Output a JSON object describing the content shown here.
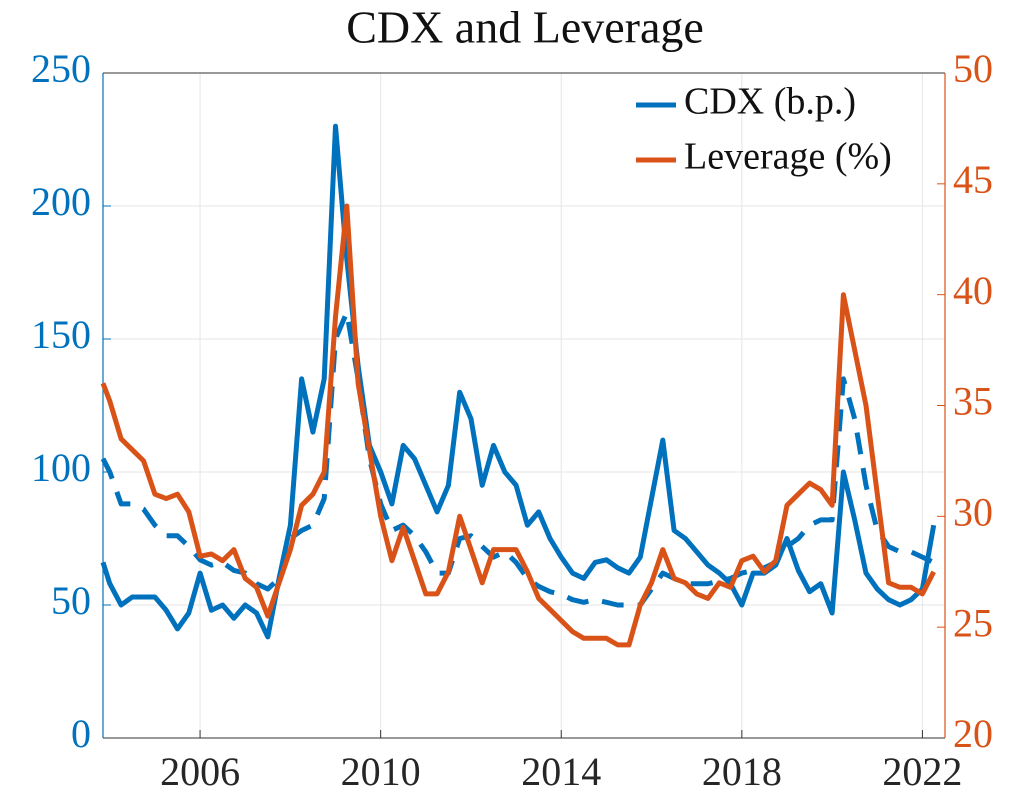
{
  "chart_data": {
    "type": "line",
    "title": "CDX and Leverage",
    "x": [
      2003.85,
      2004,
      2004.25,
      2004.5,
      2004.75,
      2005,
      2005.25,
      2005.5,
      2005.75,
      2006,
      2006.25,
      2006.5,
      2006.75,
      2007,
      2007.25,
      2007.5,
      2007.75,
      2008,
      2008.25,
      2008.5,
      2008.75,
      2009,
      2009.25,
      2009.5,
      2009.75,
      2010,
      2010.25,
      2010.5,
      2010.75,
      2011,
      2011.25,
      2011.5,
      2011.75,
      2012,
      2012.25,
      2012.5,
      2012.75,
      2013,
      2013.25,
      2013.5,
      2013.75,
      2014,
      2014.25,
      2014.5,
      2014.75,
      2015,
      2015.25,
      2015.5,
      2015.75,
      2016,
      2016.25,
      2016.5,
      2016.75,
      2017,
      2017.25,
      2017.5,
      2017.75,
      2018,
      2018.25,
      2018.5,
      2018.75,
      2019,
      2019.25,
      2019.5,
      2019.75,
      2020,
      2020.25,
      2020.5,
      2020.75,
      2021,
      2021.25,
      2021.5,
      2021.75,
      2022,
      2022.25
    ],
    "series": [
      {
        "name": "CDX (b.p.)",
        "color": "#0072bd",
        "style": "solid",
        "values": [
          66,
          58,
          50,
          53,
          53,
          53,
          48,
          41,
          47,
          62,
          48,
          50,
          45,
          50,
          47,
          38,
          60,
          80,
          135,
          115,
          135,
          230,
          180,
          140,
          110,
          100,
          88,
          110,
          105,
          95,
          85,
          95,
          130,
          120,
          95,
          110,
          100,
          95,
          80,
          85,
          75,
          68,
          62,
          60,
          66,
          67,
          64,
          62,
          68,
          90,
          112,
          78,
          75,
          70,
          65,
          62,
          58,
          50,
          62,
          62,
          65,
          75,
          63,
          55,
          58,
          47,
          100,
          82,
          62,
          56,
          52,
          50,
          52,
          56,
          80
        ]
      },
      {
        "color": "#0072bd",
        "style": "dashed",
        "values": [
          105,
          100,
          88,
          88,
          86,
          80,
          76,
          76,
          72,
          67,
          65,
          66,
          63,
          62,
          58,
          56,
          60,
          75,
          78,
          80,
          90,
          150,
          160,
          135,
          105,
          88,
          78,
          80,
          76,
          70,
          62,
          62,
          75,
          76,
          72,
          68,
          70,
          66,
          60,
          57,
          55,
          54,
          52,
          51,
          52,
          51,
          50,
          50,
          50,
          56,
          62,
          60,
          58,
          58,
          58,
          59,
          60,
          62,
          63,
          64,
          66,
          72,
          75,
          80,
          82,
          82,
          135,
          120,
          95,
          78,
          72,
          70,
          70,
          68,
          66
        ]
      },
      {
        "name": "Leverage (%)",
        "color": "#d95319",
        "style": "solid",
        "axis": "y2",
        "values": [
          36,
          35.2,
          33.5,
          33,
          32.5,
          31,
          30.8,
          31,
          30.2,
          28.2,
          28.3,
          28,
          28.5,
          27.2,
          26.8,
          25.5,
          27,
          28.5,
          30.5,
          31,
          32,
          39,
          44,
          36,
          33,
          30,
          28,
          29.5,
          28,
          26.5,
          26.5,
          27.5,
          30,
          28.5,
          27,
          28.5,
          28.5,
          28.5,
          27.5,
          26.3,
          25.8,
          25.3,
          24.8,
          24.5,
          24.5,
          24.5,
          24.2,
          24.2,
          26,
          27,
          28.5,
          27.2,
          27,
          26.5,
          26.3,
          27,
          26.8,
          28,
          28.2,
          27.5,
          28,
          30.5,
          31,
          31.5,
          31.2,
          30.5,
          40,
          37.5,
          35,
          31,
          27,
          26.8,
          26.8,
          26.5,
          27.5
        ]
      }
    ],
    "xlim": [
      2003.85,
      2022.5
    ],
    "xticks": [
      2006,
      2010,
      2014,
      2018,
      2022
    ],
    "ylim": [
      0,
      250
    ],
    "yticks": [
      0,
      50,
      100,
      150,
      200,
      250
    ],
    "y_color": "#0072bd",
    "y2lim": [
      20,
      50
    ],
    "y2ticks": [
      20,
      25,
      30,
      35,
      40,
      45,
      50
    ],
    "y2_color": "#d95319",
    "grid": true,
    "legend": "top-right"
  }
}
